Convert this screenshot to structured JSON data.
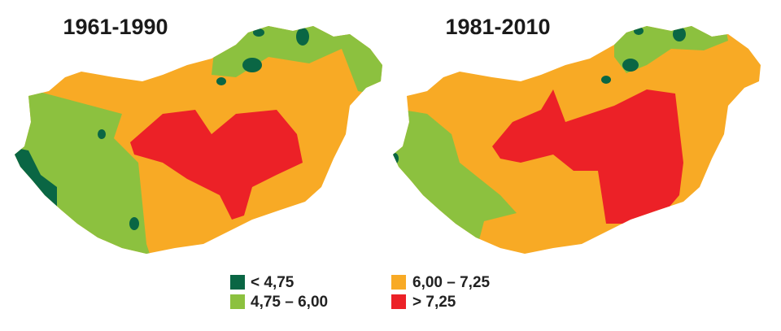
{
  "maps": [
    {
      "title": "1961-1990"
    },
    {
      "title": "1981-2010"
    }
  ],
  "legend": [
    {
      "label": "< 4,75",
      "color": "#0a6644"
    },
    {
      "label": "4,75 – 6,00",
      "color": "#8cc13f"
    },
    {
      "label": "6,00 – 7,25",
      "color": "#f8aa25"
    },
    {
      "label": "> 7,25",
      "color": "#ec2127"
    }
  ]
}
